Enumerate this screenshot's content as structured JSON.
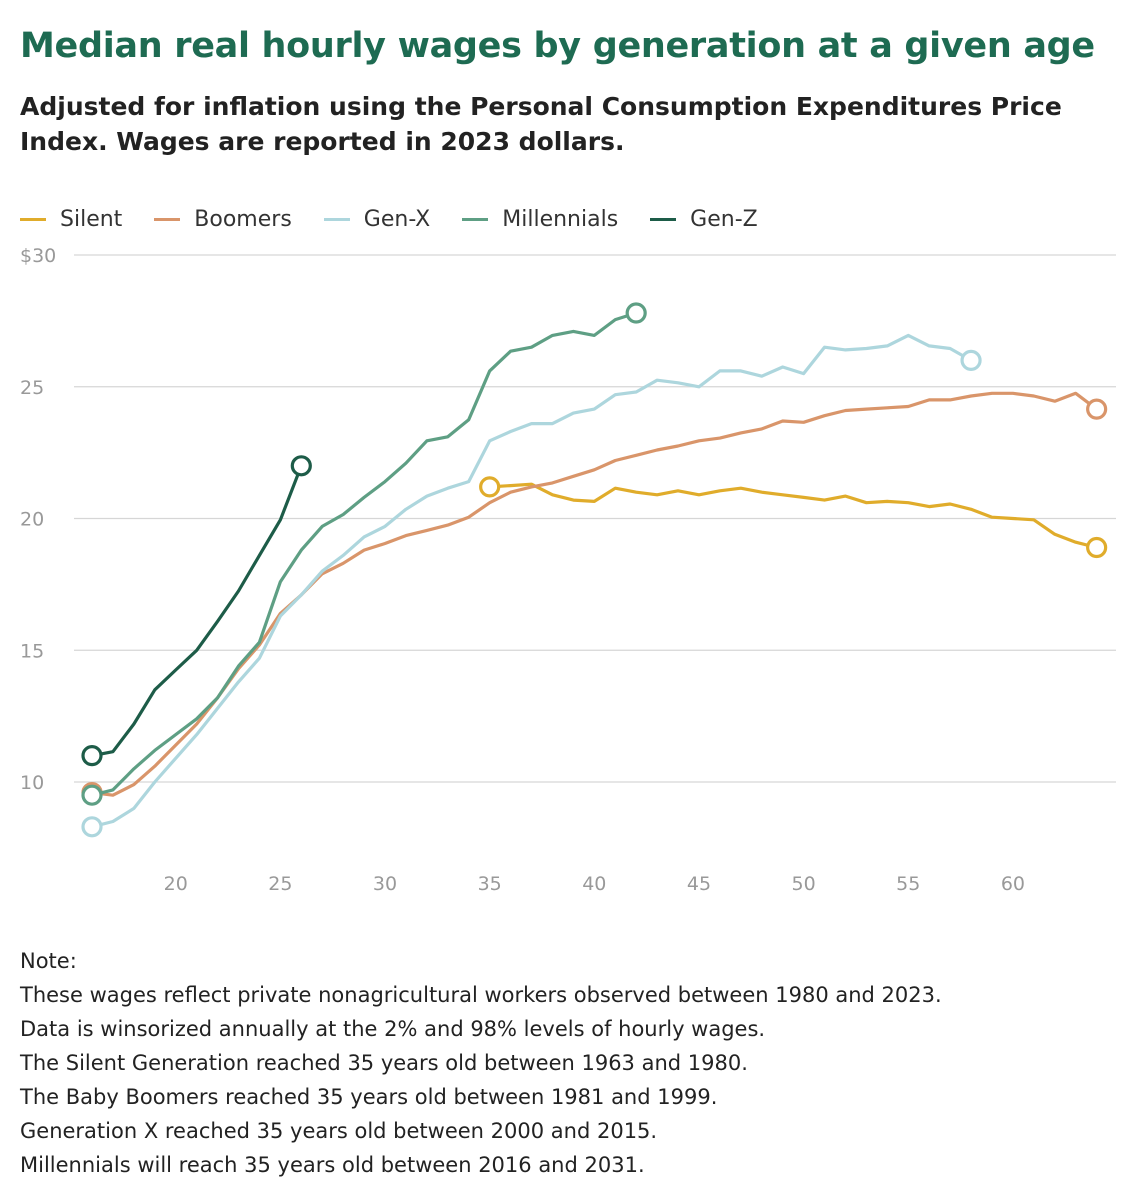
{
  "title": "Median real hourly wages by generation at a given age",
  "subtitle": "Adjusted for inflation using the Personal Consumption Expenditures Price Index. Wages are reported in 2023 dollars.",
  "chart_data": {
    "type": "line",
    "title": "Median real hourly wages by generation at a given age",
    "xlabel": "",
    "ylabel": "",
    "xlim": [
      16,
      65
    ],
    "ylim": [
      7,
      30
    ],
    "x_ticks": [
      20,
      25,
      30,
      35,
      40,
      45,
      50,
      55,
      60
    ],
    "y_ticks": [
      {
        "value": 10,
        "label": "10"
      },
      {
        "value": 15,
        "label": "15"
      },
      {
        "value": 20,
        "label": "20"
      },
      {
        "value": 25,
        "label": "25"
      },
      {
        "value": 30,
        "label": "$30"
      }
    ],
    "grid": "horizontal",
    "legend_position": "top-left",
    "series": [
      {
        "name": "Silent",
        "color": "#e0ac2b",
        "x": [
          35,
          36,
          37,
          38,
          39,
          40,
          41,
          42,
          43,
          44,
          45,
          46,
          47,
          48,
          49,
          50,
          51,
          52,
          53,
          54,
          55,
          56,
          57,
          58,
          59,
          60,
          61,
          62,
          63,
          64
        ],
        "values": [
          21.2,
          21.25,
          21.3,
          20.9,
          20.7,
          20.65,
          21.15,
          21.0,
          20.9,
          21.05,
          20.9,
          21.05,
          21.15,
          21.0,
          20.9,
          20.8,
          20.7,
          20.85,
          20.6,
          20.65,
          20.6,
          20.45,
          20.55,
          20.35,
          20.05,
          20.0,
          19.95,
          19.4,
          19.1,
          18.9
        ]
      },
      {
        "name": "Boomers",
        "color": "#d9956a",
        "x": [
          16,
          17,
          18,
          19,
          20,
          21,
          22,
          23,
          24,
          25,
          26,
          27,
          28,
          29,
          30,
          31,
          32,
          33,
          34,
          35,
          36,
          37,
          38,
          39,
          40,
          41,
          42,
          43,
          44,
          45,
          46,
          47,
          48,
          49,
          50,
          51,
          52,
          53,
          54,
          55,
          56,
          57,
          58,
          59,
          60,
          61,
          62,
          63,
          64
        ],
        "values": [
          9.6,
          9.5,
          9.9,
          10.6,
          11.4,
          12.2,
          13.2,
          14.3,
          15.2,
          16.4,
          17.1,
          17.9,
          18.3,
          18.8,
          19.05,
          19.35,
          19.55,
          19.75,
          20.05,
          20.6,
          21.0,
          21.2,
          21.35,
          21.6,
          21.85,
          22.2,
          22.4,
          22.6,
          22.75,
          22.95,
          23.05,
          23.25,
          23.4,
          23.7,
          23.65,
          23.9,
          24.1,
          24.15,
          24.2,
          24.25,
          24.5,
          24.5,
          24.65,
          24.75,
          24.75,
          24.65,
          24.45,
          24.75,
          24.15
        ]
      },
      {
        "name": "Gen-X",
        "color": "#add6dd",
        "x": [
          16,
          17,
          18,
          19,
          20,
          21,
          22,
          23,
          24,
          25,
          26,
          27,
          28,
          29,
          30,
          31,
          32,
          33,
          34,
          35,
          36,
          37,
          38,
          39,
          40,
          41,
          42,
          43,
          44,
          45,
          46,
          47,
          48,
          49,
          50,
          51,
          52,
          53,
          54,
          55,
          56,
          57,
          58
        ],
        "values": [
          8.3,
          8.5,
          9.0,
          10.0,
          10.9,
          11.8,
          12.8,
          13.8,
          14.7,
          16.3,
          17.1,
          18.0,
          18.6,
          19.3,
          19.7,
          20.35,
          20.85,
          21.15,
          21.4,
          22.95,
          23.3,
          23.6,
          23.6,
          24.0,
          24.15,
          24.7,
          24.8,
          25.25,
          25.15,
          25.0,
          25.6,
          25.6,
          25.4,
          25.75,
          25.5,
          26.5,
          26.4,
          26.45,
          26.55,
          26.95,
          26.55,
          26.45,
          26.0
        ]
      },
      {
        "name": "Millennials",
        "color": "#5e9f84",
        "x": [
          16,
          17,
          18,
          19,
          20,
          21,
          22,
          23,
          24,
          25,
          26,
          27,
          28,
          29,
          30,
          31,
          32,
          33,
          34,
          35,
          36,
          37,
          38,
          39,
          40,
          41,
          42
        ],
        "values": [
          9.5,
          9.7,
          10.5,
          11.2,
          11.8,
          12.4,
          13.2,
          14.4,
          15.3,
          17.6,
          18.8,
          19.7,
          20.15,
          20.8,
          21.4,
          22.1,
          22.95,
          23.1,
          23.75,
          25.6,
          26.35,
          26.5,
          26.95,
          27.1,
          26.95,
          27.55,
          27.8
        ]
      },
      {
        "name": "Gen-Z",
        "color": "#1d5c48",
        "x": [
          16,
          17,
          18,
          19,
          20,
          21,
          22,
          23,
          24,
          25,
          26
        ],
        "values": [
          11.0,
          11.15,
          12.2,
          13.5,
          14.25,
          15.0,
          16.1,
          17.25,
          18.6,
          19.95,
          22.0
        ]
      }
    ]
  },
  "notes": {
    "heading": "Note:",
    "lines": [
      "These wages reflect private nonagricultural workers observed between 1980 and 2023.",
      "Data is winsorized annually at the 2% and 98% levels of hourly wages.",
      "The Silent Generation reached 35 years old between 1963 and 1980.",
      "The Baby Boomers reached 35 years old between 1981 and 1999.",
      "Generation X reached 35 years old between 2000 and 2015.",
      "Millennials will reach 35 years old between 2016 and 2031."
    ]
  }
}
